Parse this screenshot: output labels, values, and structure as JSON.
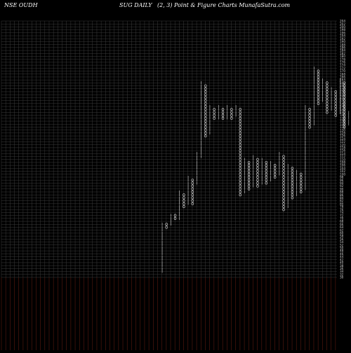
{
  "header": {
    "left": "NSE OUDH",
    "middle": "SUG DAILY",
    "right": "(2,  3) Point & Figure    Charts MunafaSutra.com"
  },
  "colors": {
    "background": "#000000",
    "grid_upper": "#3b3b3b",
    "grid_lower": "#5a1a10",
    "marks": "#d8d8d8",
    "price_marker": "#1e6fff",
    "price_label_bg": "#ffffff",
    "price_label_text": "#0000aa"
  },
  "chart_data": {
    "type": "point_and_figure",
    "title": "",
    "box_size": 2,
    "reversal": 3,
    "ylim": [
      30,
      204
    ],
    "y_ticks": [
      204,
      202,
      200,
      198,
      196,
      194,
      192,
      190,
      188,
      186,
      184,
      182,
      180,
      178,
      176,
      174,
      172,
      170,
      168,
      166,
      164,
      162,
      160,
      158,
      156,
      154,
      152,
      150,
      148,
      146,
      144,
      142,
      140,
      138,
      136,
      134,
      132,
      130,
      128,
      126,
      124,
      122,
      120,
      118,
      116,
      114,
      112,
      110,
      108,
      106,
      104,
      102,
      100,
      98,
      96,
      94,
      92,
      90,
      88,
      86,
      84,
      82,
      80,
      78,
      76,
      74,
      72,
      70,
      68,
      66,
      64,
      62,
      60,
      58,
      56,
      54,
      52,
      50,
      48,
      46,
      44,
      42,
      40,
      38,
      36,
      34,
      32,
      30
    ],
    "columns": [
      {
        "symbol": "X",
        "low": 34,
        "high": 66
      },
      {
        "symbol": "O",
        "low": 64,
        "high": 66
      },
      {
        "symbol": "X",
        "low": 66,
        "high": 72
      },
      {
        "symbol": "O",
        "low": 70,
        "high": 72
      },
      {
        "symbol": "X",
        "low": 70,
        "high": 88
      },
      {
        "symbol": "O",
        "low": 78,
        "high": 86
      },
      {
        "symbol": "X",
        "low": 80,
        "high": 98
      },
      {
        "symbol": "O",
        "low": 80,
        "high": 96
      },
      {
        "symbol": "X",
        "low": 94,
        "high": 114
      },
      {
        "symbol": "X",
        "low": 112,
        "high": 162
      },
      {
        "symbol": "O",
        "low": 126,
        "high": 160
      },
      {
        "symbol": "X",
        "low": 128,
        "high": 146
      },
      {
        "symbol": "O",
        "low": 138,
        "high": 144
      },
      {
        "symbol": "X",
        "low": 138,
        "high": 146
      },
      {
        "symbol": "O",
        "low": 138,
        "high": 144
      },
      {
        "symbol": "X",
        "low": 138,
        "high": 146
      },
      {
        "symbol": "O",
        "low": 138,
        "high": 144
      },
      {
        "symbol": "X",
        "low": 140,
        "high": 146
      },
      {
        "symbol": "O",
        "low": 86,
        "high": 144
      },
      {
        "symbol": "X",
        "low": 88,
        "high": 110
      },
      {
        "symbol": "O",
        "low": 90,
        "high": 108
      },
      {
        "symbol": "X",
        "low": 92,
        "high": 112
      },
      {
        "symbol": "O",
        "low": 92,
        "high": 110
      },
      {
        "symbol": "X",
        "low": 94,
        "high": 110
      },
      {
        "symbol": "O",
        "low": 94,
        "high": 108
      },
      {
        "symbol": "X",
        "low": 96,
        "high": 108
      },
      {
        "symbol": "O",
        "low": 98,
        "high": 106
      },
      {
        "symbol": "X",
        "low": 100,
        "high": 114
      },
      {
        "symbol": "O",
        "low": 76,
        "high": 112
      },
      {
        "symbol": "X",
        "low": 78,
        "high": 106
      },
      {
        "symbol": "O",
        "low": 84,
        "high": 104
      },
      {
        "symbol": "X",
        "low": 86,
        "high": 102
      },
      {
        "symbol": "O",
        "low": 88,
        "high": 100
      },
      {
        "symbol": "X",
        "low": 90,
        "high": 146
      },
      {
        "symbol": "O",
        "low": 132,
        "high": 144
      },
      {
        "symbol": "X",
        "low": 134,
        "high": 172
      },
      {
        "symbol": "O",
        "low": 148,
        "high": 170
      },
      {
        "symbol": "X",
        "low": 150,
        "high": 164
      },
      {
        "symbol": "O",
        "low": 142,
        "high": 162
      },
      {
        "symbol": "X",
        "low": 144,
        "high": 158
      },
      {
        "symbol": "O",
        "low": 140,
        "high": 156
      },
      {
        "symbol": "X",
        "low": 142,
        "high": 164
      },
      {
        "symbol": "O",
        "low": 132,
        "high": 162
      },
      {
        "symbol": "X",
        "low": 134,
        "high": 142
      },
      {
        "symbol": "O",
        "low": 132,
        "high": 140
      }
    ],
    "current_price": 130.75,
    "current_price_label": "130.75"
  }
}
